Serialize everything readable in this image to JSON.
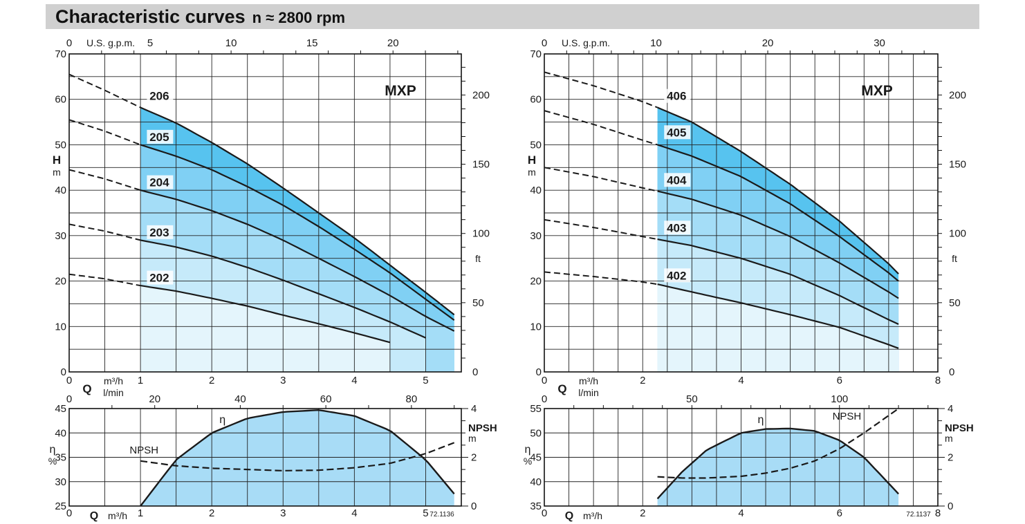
{
  "header": {
    "title": "Characteristic curves",
    "subtitle": "n ≈ 2800 rpm"
  },
  "colors": {
    "header_bg": "#d0d0d0",
    "fill_levels": [
      "#e4f5fc",
      "#c6eafa",
      "#a4ddf7",
      "#80d0f4",
      "#57c3ef"
    ],
    "eta_fill": "#a8dcf6",
    "line": "#1a1a1a"
  },
  "chart_data": [
    {
      "type": "line",
      "id": "left-head",
      "badge": "MXP",
      "x_ticks": [
        "0",
        "1",
        "2",
        "3",
        "4",
        "5"
      ],
      "xlim": [
        0,
        5.5
      ],
      "ylim": [
        0,
        70
      ],
      "y_ticks": [
        "0",
        "10",
        "20",
        "30",
        "40",
        "50",
        "60",
        "70"
      ],
      "ylabel": "H",
      "yunit": "m",
      "y2_ticks": [
        "0",
        "50",
        "100",
        "150",
        "200"
      ],
      "y2unit": "ft",
      "top_unit": "U.S. g.p.m.",
      "top_ticks": [
        "0",
        "5",
        "10",
        "15",
        "20"
      ],
      "xlabel": "Q",
      "xunit1": "m³/h",
      "xunit2": "l/min",
      "fill_from": 1,
      "series": [
        {
          "name": "202",
          "label_at": [
            1.1,
            20
          ],
          "end": 4.5,
          "x": [
            0,
            0.5,
            1,
            1.5,
            2,
            2.5,
            3,
            3.5,
            4,
            4.5
          ],
          "y": [
            21.5,
            20.5,
            19,
            17.8,
            16.2,
            14.5,
            12.5,
            10.6,
            8.6,
            6.5
          ]
        },
        {
          "name": "203",
          "label_at": [
            1.1,
            30
          ],
          "end": 5.0,
          "x": [
            0,
            0.5,
            1,
            1.5,
            2,
            2.5,
            3,
            3.5,
            4,
            4.5,
            5
          ],
          "y": [
            32.5,
            31,
            29,
            27.5,
            25.5,
            23,
            20.2,
            17.2,
            14.2,
            11,
            7.5
          ]
        },
        {
          "name": "204",
          "label_at": [
            1.1,
            41
          ],
          "end": 5.4,
          "x": [
            0,
            0.5,
            1,
            1.5,
            2,
            2.5,
            3,
            3.5,
            4,
            4.5,
            5,
            5.4
          ],
          "y": [
            44.5,
            42.5,
            40,
            38,
            35.5,
            32.5,
            29,
            25,
            21,
            16.8,
            12.2,
            9
          ]
        },
        {
          "name": "205",
          "label_at": [
            1.1,
            51
          ],
          "end": 5.4,
          "x": [
            0,
            0.5,
            1,
            1.5,
            2,
            2.5,
            3,
            3.5,
            4,
            4.5,
            5,
            5.4
          ],
          "y": [
            55.5,
            53,
            50,
            47.5,
            44.5,
            40.8,
            36.7,
            32,
            27,
            21.8,
            16,
            11.4
          ]
        },
        {
          "name": "206",
          "label_at": [
            1.1,
            60
          ],
          "end": 5.4,
          "x": [
            0,
            0.5,
            1,
            1.5,
            2,
            2.5,
            3,
            3.5,
            4,
            4.5,
            5,
            5.4
          ],
          "y": [
            65.5,
            62,
            58.2,
            54.8,
            50.5,
            45.8,
            40.5,
            35,
            29.5,
            23.5,
            17.5,
            12.6
          ]
        }
      ]
    },
    {
      "type": "area",
      "id": "left-eff",
      "x_ticks": [
        "0",
        "1",
        "2",
        "3",
        "4",
        "5"
      ],
      "xlim": [
        0,
        5.5
      ],
      "ylim": [
        25,
        45
      ],
      "y_ticks": [
        "25",
        "30",
        "35",
        "40",
        "45"
      ],
      "ylabel": "η",
      "yunit": "%",
      "y2_ticks": [
        "0",
        "2",
        "4"
      ],
      "y2label": "NPSH",
      "y2unit": "m",
      "y2lim": [
        0,
        4
      ],
      "top_ticks": [
        "0",
        "20",
        "40",
        "60",
        "80"
      ],
      "xlabel": "Q",
      "xunit": "m³/h",
      "code": "72.1136",
      "eta_label": "η",
      "npsh_label": "NPSH",
      "series": [
        {
          "name": "η",
          "x": [
            1,
            1.5,
            2,
            2.5,
            3,
            3.5,
            4,
            4.5,
            5,
            5.4
          ],
          "y": [
            25,
            34.5,
            40,
            43,
            44.3,
            44.7,
            43.5,
            40.5,
            34.5,
            27.5
          ]
        },
        {
          "name": "NPSH",
          "x": [
            1,
            1.5,
            2,
            2.5,
            3,
            3.5,
            4,
            4.5,
            5,
            5.4
          ],
          "y": [
            1.85,
            1.65,
            1.55,
            1.5,
            1.45,
            1.47,
            1.57,
            1.75,
            2.15,
            2.6
          ]
        }
      ]
    },
    {
      "type": "line",
      "id": "right-head",
      "badge": "MXP",
      "x_ticks": [
        "0",
        "2",
        "4",
        "6",
        "8"
      ],
      "xlim": [
        0,
        8
      ],
      "ylim": [
        0,
        70
      ],
      "y_ticks": [
        "0",
        "10",
        "20",
        "30",
        "40",
        "50",
        "60",
        "70"
      ],
      "ylabel": "H",
      "yunit": "m",
      "y2_ticks": [
        "0",
        "50",
        "100",
        "150",
        "200"
      ],
      "y2unit": "ft",
      "top_unit": "U.S. g.p.m.",
      "top_ticks": [
        "0",
        "10",
        "20",
        "30"
      ],
      "xlabel": "Q",
      "xunit1": "m³/h",
      "xunit2": "l/min",
      "fill_from": 2.3,
      "series": [
        {
          "name": "402",
          "label_at": [
            2.45,
            20.5
          ],
          "end": 7.2,
          "x": [
            0,
            1,
            2,
            2.3,
            3,
            4,
            5,
            6,
            7,
            7.2
          ],
          "y": [
            22,
            21,
            19.8,
            19.3,
            17.6,
            15.2,
            12.6,
            9.8,
            6,
            5.2
          ]
        },
        {
          "name": "403",
          "label_at": [
            2.45,
            31
          ],
          "end": 7.2,
          "x": [
            0,
            1,
            2,
            2.3,
            3,
            4,
            5,
            6,
            7,
            7.2
          ],
          "y": [
            33.5,
            31.8,
            29.8,
            29.2,
            27.8,
            25,
            21.5,
            16.8,
            11.5,
            10.5
          ]
        },
        {
          "name": "404",
          "label_at": [
            2.45,
            41.5
          ],
          "end": 7.2,
          "x": [
            0,
            1,
            2,
            2.3,
            3,
            4,
            5,
            6,
            7,
            7.2
          ],
          "y": [
            45,
            43,
            40.5,
            39.8,
            38,
            34.5,
            29.8,
            24,
            17.6,
            16.2
          ]
        },
        {
          "name": "405",
          "label_at": [
            2.45,
            52
          ],
          "end": 7.2,
          "x": [
            0,
            1,
            2,
            2.3,
            3,
            4,
            5,
            6,
            7,
            7.2
          ],
          "y": [
            57.5,
            54.5,
            51,
            50,
            47.5,
            43,
            37,
            29.8,
            21.8,
            20
          ]
        },
        {
          "name": "406",
          "label_at": [
            2.45,
            60
          ],
          "end": 7.2,
          "x": [
            0,
            1,
            2,
            2.3,
            3,
            4,
            5,
            6,
            7,
            7.2
          ],
          "y": [
            66,
            63,
            59.5,
            58.2,
            55,
            48.5,
            41.3,
            33.2,
            23.8,
            21.6
          ]
        }
      ]
    },
    {
      "type": "area",
      "id": "right-eff",
      "x_ticks": [
        "0",
        "2",
        "4",
        "6",
        "8"
      ],
      "xlim": [
        0,
        8
      ],
      "ylim": [
        35,
        55
      ],
      "y_ticks": [
        "35",
        "40",
        "45",
        "50",
        "55"
      ],
      "ylabel": "η",
      "yunit": "%",
      "y2_ticks": [
        "0",
        "2",
        "4"
      ],
      "y2label": "NPSH",
      "y2unit": "m",
      "y2lim": [
        0,
        4
      ],
      "top_ticks": [
        "0",
        "50",
        "100"
      ],
      "xlabel": "Q",
      "xunit": "m³/h",
      "code": "72.1137",
      "eta_label": "η",
      "npsh_label": "NPSH",
      "series": [
        {
          "name": "η",
          "x": [
            2.3,
            2.8,
            3.3,
            4,
            4.5,
            5,
            5.5,
            6,
            6.5,
            7.2
          ],
          "y": [
            36.5,
            42,
            46.5,
            50,
            50.8,
            50.9,
            50.4,
            48.5,
            45,
            37.5
          ]
        },
        {
          "name": "NPSH",
          "x": [
            2.3,
            2.8,
            3.3,
            4,
            4.5,
            5,
            5.5,
            6,
            6.5,
            7.2
          ],
          "y": [
            1.2,
            1.15,
            1.15,
            1.22,
            1.35,
            1.55,
            1.85,
            2.35,
            3.0,
            4.0
          ]
        }
      ]
    }
  ]
}
